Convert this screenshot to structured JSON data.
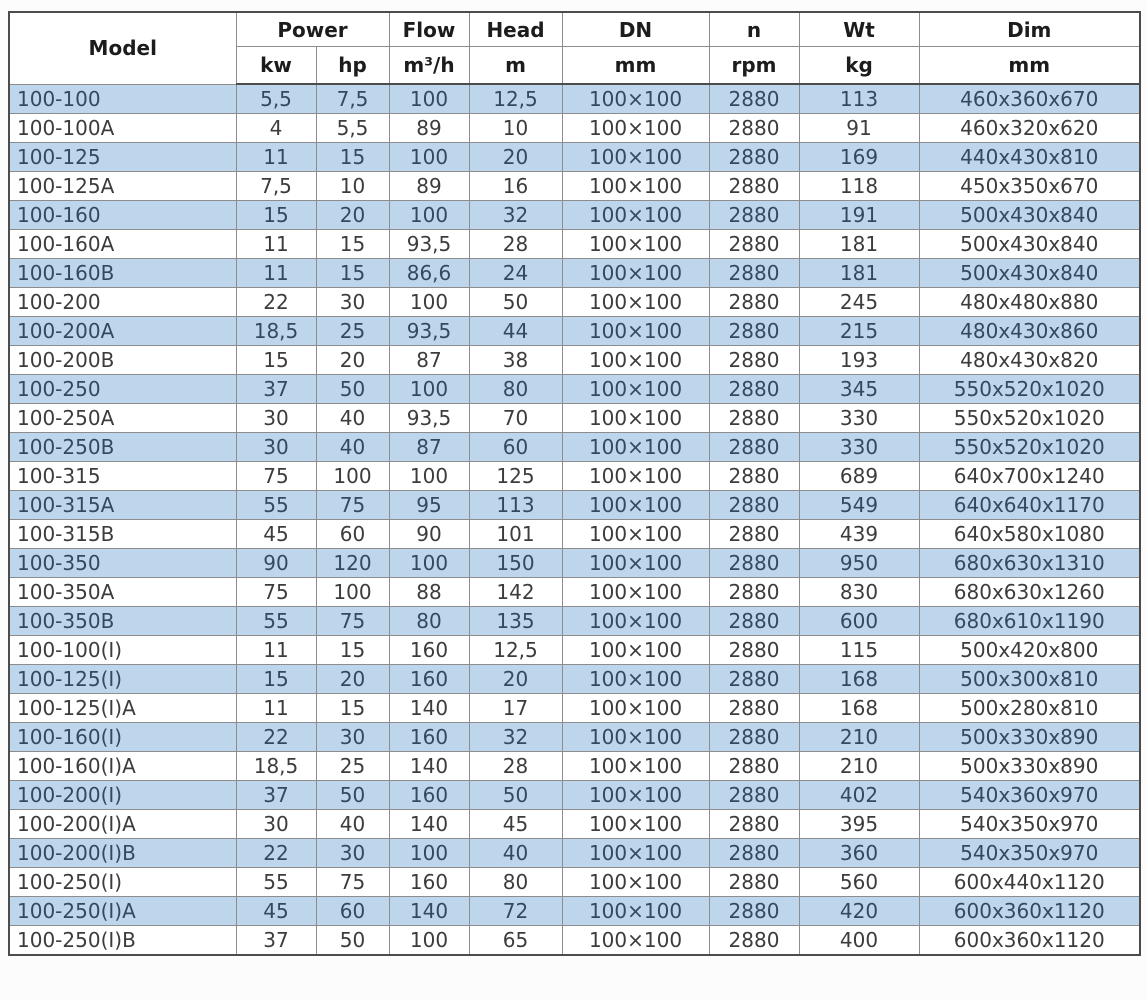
{
  "colors": {
    "alt_row_background": "#bdd6ec",
    "row_background": "#ffffff",
    "outer_border": "#4c4c4c",
    "inner_border": "#8d8d8d",
    "header_text": "#1c1c1c",
    "body_text": "#3c3c3c",
    "alt_body_text": "#35495e"
  },
  "table": {
    "header": {
      "model_label": "Model",
      "power_label": "Power",
      "kw_label": "kw",
      "hp_label": "hp",
      "flow_label": "Flow",
      "flow_unit": "m³/h",
      "head_label": "Head",
      "head_unit": "m",
      "dn_label": "DN",
      "dn_unit": "mm",
      "n_label": "n",
      "n_unit": "rpm",
      "wt_label": "Wt",
      "wt_unit": "kg",
      "dim_label": "Dim",
      "dim_unit": "mm"
    }
  },
  "chart_data": {
    "type": "table",
    "title": "Pump model specification table",
    "columns": [
      "Model",
      "Power kw",
      "Power hp",
      "Flow m³/h",
      "Head m",
      "DN mm",
      "n rpm",
      "Wt kg",
      "Dim mm"
    ],
    "rows": [
      [
        "100-100",
        "5,5",
        "7,5",
        "100",
        "12,5",
        "100×100",
        "2880",
        "113",
        "460x360x670"
      ],
      [
        "100-100A",
        "4",
        "5,5",
        "89",
        "10",
        "100×100",
        "2880",
        "91",
        "460x320x620"
      ],
      [
        "100-125",
        "11",
        "15",
        "100",
        "20",
        "100×100",
        "2880",
        "169",
        "440x430x810"
      ],
      [
        "100-125A",
        "7,5",
        "10",
        "89",
        "16",
        "100×100",
        "2880",
        "118",
        "450x350x670"
      ],
      [
        "100-160",
        "15",
        "20",
        "100",
        "32",
        "100×100",
        "2880",
        "191",
        "500x430x840"
      ],
      [
        "100-160A",
        "11",
        "15",
        "93,5",
        "28",
        "100×100",
        "2880",
        "181",
        "500x430x840"
      ],
      [
        "100-160B",
        "11",
        "15",
        "86,6",
        "24",
        "100×100",
        "2880",
        "181",
        "500x430x840"
      ],
      [
        "100-200",
        "22",
        "30",
        "100",
        "50",
        "100×100",
        "2880",
        "245",
        "480x480x880"
      ],
      [
        "100-200A",
        "18,5",
        "25",
        "93,5",
        "44",
        "100×100",
        "2880",
        "215",
        "480x430x860"
      ],
      [
        "100-200B",
        "15",
        "20",
        "87",
        "38",
        "100×100",
        "2880",
        "193",
        "480x430x820"
      ],
      [
        "100-250",
        "37",
        "50",
        "100",
        "80",
        "100×100",
        "2880",
        "345",
        "550x520x1020"
      ],
      [
        "100-250A",
        "30",
        "40",
        "93,5",
        "70",
        "100×100",
        "2880",
        "330",
        "550x520x1020"
      ],
      [
        "100-250B",
        "30",
        "40",
        "87",
        "60",
        "100×100",
        "2880",
        "330",
        "550x520x1020"
      ],
      [
        "100-315",
        "75",
        "100",
        "100",
        "125",
        "100×100",
        "2880",
        "689",
        "640x700x1240"
      ],
      [
        "100-315A",
        "55",
        "75",
        "95",
        "113",
        "100×100",
        "2880",
        "549",
        "640x640x1170"
      ],
      [
        "100-315B",
        "45",
        "60",
        "90",
        "101",
        "100×100",
        "2880",
        "439",
        "640x580x1080"
      ],
      [
        "100-350",
        "90",
        "120",
        "100",
        "150",
        "100×100",
        "2880",
        "950",
        "680x630x1310"
      ],
      [
        "100-350A",
        "75",
        "100",
        "88",
        "142",
        "100×100",
        "2880",
        "830",
        "680x630x1260"
      ],
      [
        "100-350B",
        "55",
        "75",
        "80",
        "135",
        "100×100",
        "2880",
        "600",
        "680x610x1190"
      ],
      [
        "100-100(I)",
        "11",
        "15",
        "160",
        "12,5",
        "100×100",
        "2880",
        "115",
        "500x420x800"
      ],
      [
        "100-125(I)",
        "15",
        "20",
        "160",
        "20",
        "100×100",
        "2880",
        "168",
        "500x300x810"
      ],
      [
        "100-125(I)A",
        "11",
        "15",
        "140",
        "17",
        "100×100",
        "2880",
        "168",
        "500x280x810"
      ],
      [
        "100-160(I)",
        "22",
        "30",
        "160",
        "32",
        "100×100",
        "2880",
        "210",
        "500x330x890"
      ],
      [
        "100-160(I)A",
        "18,5",
        "25",
        "140",
        "28",
        "100×100",
        "2880",
        "210",
        "500x330x890"
      ],
      [
        "100-200(I)",
        "37",
        "50",
        "160",
        "50",
        "100×100",
        "2880",
        "402",
        "540x360x970"
      ],
      [
        "100-200(I)A",
        "30",
        "40",
        "140",
        "45",
        "100×100",
        "2880",
        "395",
        "540x350x970"
      ],
      [
        "100-200(I)B",
        "22",
        "30",
        "100",
        "40",
        "100×100",
        "2880",
        "360",
        "540x350x970"
      ],
      [
        "100-250(I)",
        "55",
        "75",
        "160",
        "80",
        "100×100",
        "2880",
        "560",
        "600x440x1120"
      ],
      [
        "100-250(I)A",
        "45",
        "60",
        "140",
        "72",
        "100×100",
        "2880",
        "420",
        "600x360x1120"
      ],
      [
        "100-250(I)B",
        "37",
        "50",
        "100",
        "65",
        "100×100",
        "2880",
        "400",
        "600x360x1120"
      ]
    ],
    "layout": {
      "alternating_rows": "odd rows shaded light blue starting with first data row",
      "model_column_align": "left",
      "other_columns_align": "center"
    }
  }
}
